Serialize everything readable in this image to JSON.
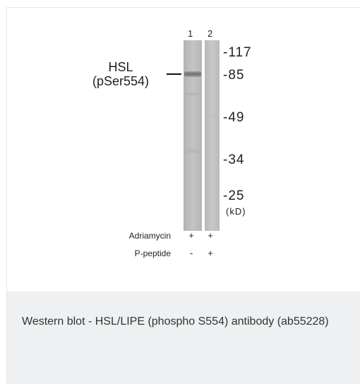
{
  "lanes": [
    "1",
    "2"
  ],
  "protein_label": {
    "line1": "HSL",
    "line2": "(pSer554)"
  },
  "markers": [
    "-117",
    "-85",
    "-49",
    "-34",
    "-25"
  ],
  "unit": "(kD)",
  "conditions": [
    {
      "label": "Adriamycin",
      "lane1": "+",
      "lane2": "+"
    },
    {
      "label": "P-peptide",
      "lane1": "-",
      "lane2": "+"
    }
  ],
  "caption": "Western blot - HSL/LIPE (phospho S554) antibody (ab55228)"
}
